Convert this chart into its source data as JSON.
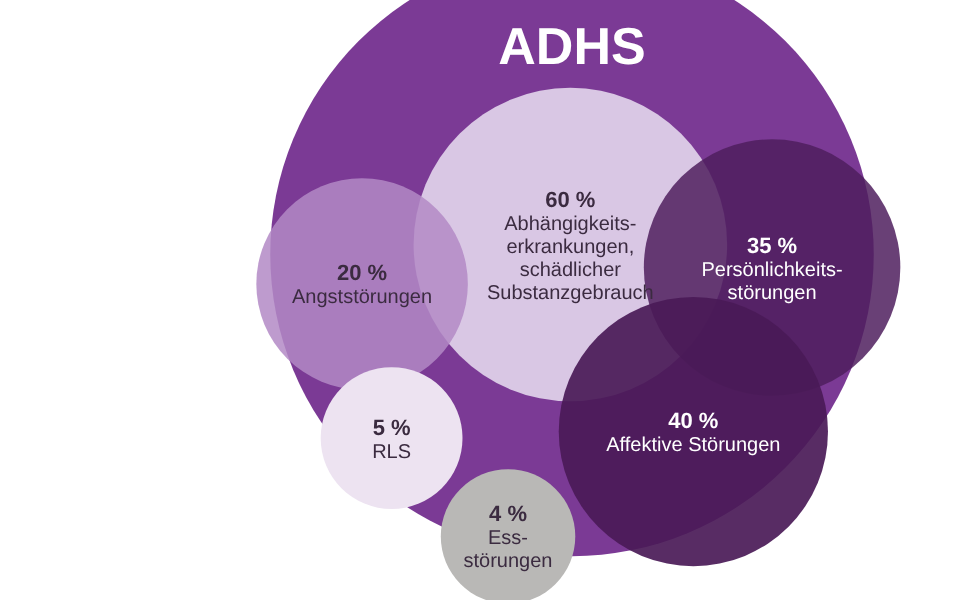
{
  "chart_data": {
    "type": "other",
    "title": "ADHS",
    "categories": [
      "Abhängigkeits-\nerkrankungen,\nschädlicher\nSubstanzgebrauch",
      "Angststörungen",
      "Persönlichkeits-\nstörungen",
      "Affektive Störungen",
      "RLS",
      "Ess-\nstörungen"
    ],
    "values": [
      60,
      20,
      35,
      40,
      5,
      4
    ],
    "value_labels": [
      "60 %",
      "20 %",
      "35 %",
      "40 %",
      "5 %",
      "4 %"
    ],
    "colors": [
      "#d9c7e4",
      "#b38ac6",
      "#4f1f5e",
      "#4a1a57",
      "#ede3f1",
      "#b9b8b6"
    ]
  }
}
